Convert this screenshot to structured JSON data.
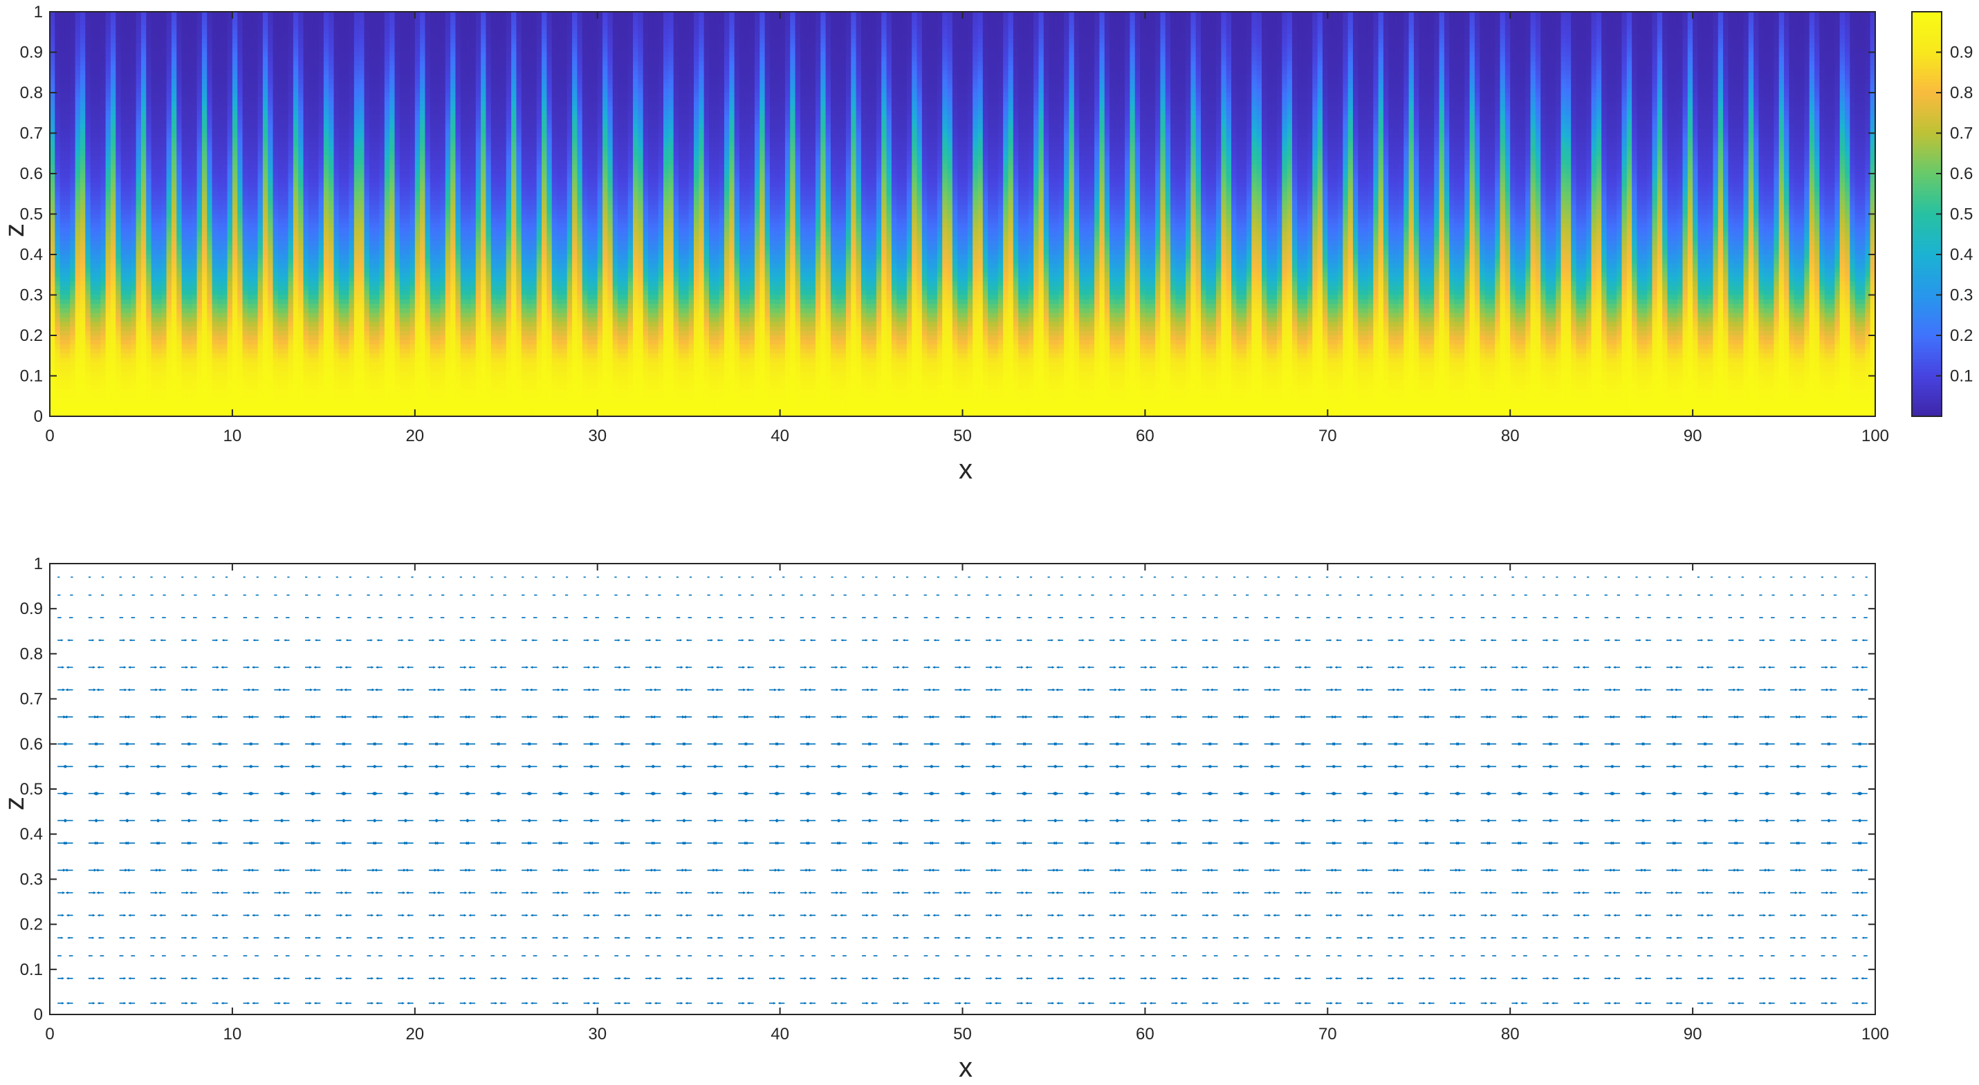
{
  "chart_data": [
    {
      "type": "heatmap",
      "xlabel": "x",
      "ylabel": "z",
      "xlim": [
        0,
        100
      ],
      "ylim": [
        0,
        1
      ],
      "x_ticks": [
        "0",
        "10",
        "20",
        "30",
        "40",
        "50",
        "60",
        "70",
        "80",
        "90",
        "100"
      ],
      "y_ticks": [
        "0",
        "0.1",
        "0.2",
        "0.3",
        "0.4",
        "0.5",
        "0.6",
        "0.7",
        "0.8",
        "0.9",
        "1"
      ],
      "colorbar": {
        "ticks": [
          "0.1",
          "0.2",
          "0.3",
          "0.4",
          "0.5",
          "0.6",
          "0.7",
          "0.8",
          "0.9"
        ],
        "range": [
          0,
          1
        ],
        "colormap": "parula",
        "colormap_stops": [
          "#3e26a8",
          "#4743e0",
          "#4073fd",
          "#2797eb",
          "#1cb2d3",
          "#27c1a2",
          "#67ca6a",
          "#bec236",
          "#f9bb3e",
          "#f8e81d",
          "#f9fb15"
        ]
      },
      "pattern": {
        "description_values": "periodic plumes along x, high at bottom, low at top",
        "num_plumes": 59,
        "plume_max_height": 0.75,
        "trough_height": 0.3
      }
    },
    {
      "type": "quiver",
      "xlabel": "x",
      "ylabel": "z",
      "xlim": [
        0,
        100
      ],
      "ylim": [
        0,
        1
      ],
      "x_ticks": [
        "0",
        "10",
        "20",
        "30",
        "40",
        "50",
        "60",
        "70",
        "80",
        "90",
        "100"
      ],
      "y_ticks": [
        "0",
        "0.1",
        "0.2",
        "0.3",
        "0.4",
        "0.5",
        "0.6",
        "0.7",
        "0.8",
        "0.9",
        "1"
      ],
      "color": "#0072bd"
    }
  ]
}
